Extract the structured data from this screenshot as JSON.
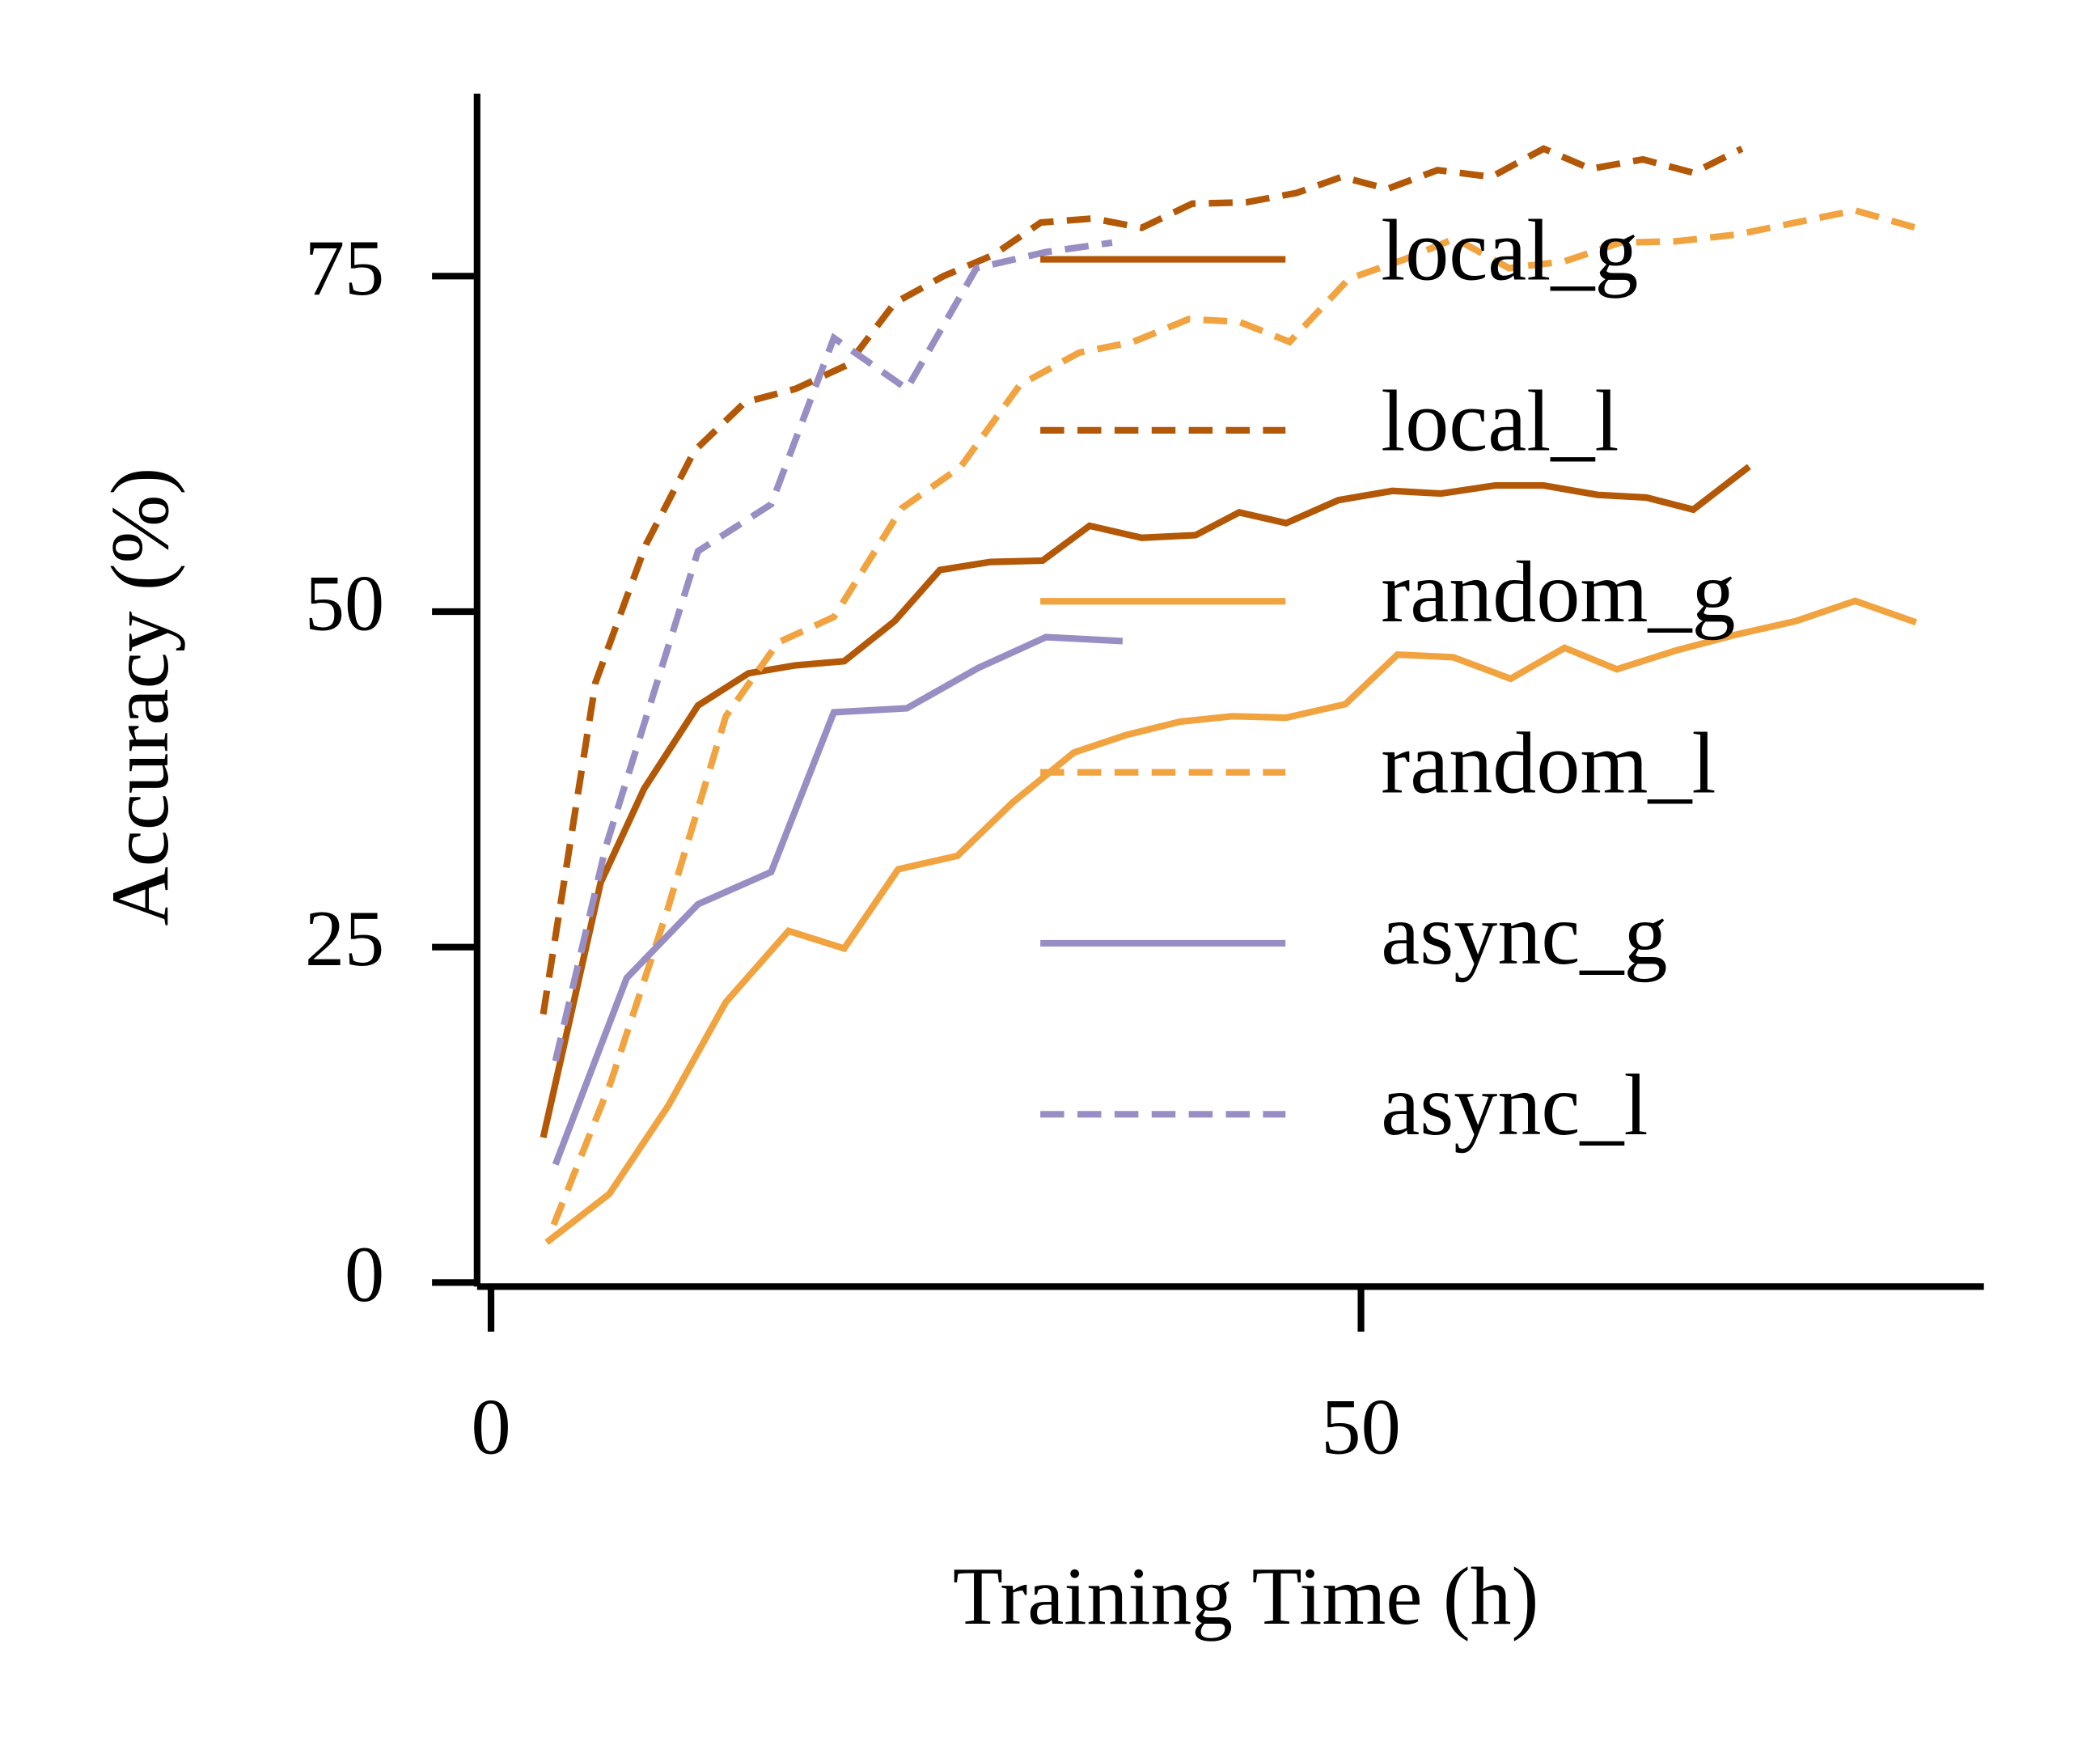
{
  "chart_data": {
    "type": "line",
    "xlabel": "Training Time (h)",
    "ylabel": "Accuracy (%)",
    "xlim": [
      -0.8,
      85.8
    ],
    "ylim": [
      -0.3,
      88.6
    ],
    "xticks": [
      0,
      50
    ],
    "yticks": [
      0,
      25,
      50,
      75
    ],
    "legend": "upper right",
    "series": [
      {
        "name": "local_g",
        "color": "#b35806",
        "line_style": "solid",
        "x": [
          3,
          6.3,
          8.8,
          11.9,
          14.8,
          17.5,
          20.3,
          23.2,
          25.8,
          28.7,
          31.7,
          34.4,
          37.4,
          40.5,
          43,
          45.7,
          48.7,
          51.8,
          54.6,
          57.7,
          60.5,
          63.6,
          66.4,
          69.1,
          72.3
        ],
        "values": [
          10.8,
          29.8,
          36.8,
          43,
          45.4,
          46,
          46.3,
          49.3,
          53.1,
          53.7,
          53.8,
          56.4,
          55.5,
          55.7,
          57.4,
          56.6,
          58.3,
          59,
          58.8,
          59.4,
          59.4,
          58.7,
          58.5,
          57.6,
          60.8
        ]
      },
      {
        "name": "local_l",
        "color": "#b35806",
        "line_style": "dashed",
        "x": [
          3,
          6,
          8.9,
          11.7,
          14.6,
          17.5,
          20.5,
          23.2,
          26,
          28.9,
          31.6,
          34.6,
          37.4,
          40.3,
          43.4,
          46.3,
          48.9,
          51.5,
          54.4,
          57.5,
          60.5,
          63.2,
          66.2,
          69.1,
          71.9
        ],
        "values": [
          20,
          44.7,
          55,
          62,
          65.6,
          66.6,
          68.4,
          73,
          75,
          76.6,
          79,
          79.3,
          78.6,
          80.4,
          80.5,
          81.2,
          82.4,
          81.5,
          82.9,
          82.4,
          84.5,
          83,
          83.7,
          82.7,
          84.5
        ]
      },
      {
        "name": "random_g",
        "color": "#f1a340",
        "line_style": "solid",
        "x": [
          3.2,
          6.8,
          10.2,
          13.5,
          17.1,
          20.3,
          23.4,
          26.8,
          30,
          33.5,
          36.5,
          39.6,
          42.6,
          45.7,
          49.1,
          52.1,
          55.3,
          58.6,
          61.7,
          64.7,
          68.1,
          71.6,
          75,
          78.4,
          81.9
        ],
        "values": [
          3,
          6.6,
          13.2,
          20.9,
          26.2,
          24.9,
          30.8,
          31.8,
          35.8,
          39.5,
          40.8,
          41.8,
          42.2,
          42.1,
          43.1,
          46.8,
          46.6,
          45,
          47.3,
          45.7,
          47.1,
          48.3,
          49.3,
          50.8,
          49.2
        ]
      },
      {
        "name": "random_l",
        "color": "#f1a340",
        "line_style": "dashed",
        "x": [
          3.6,
          6.9,
          10.1,
          13.5,
          16.5,
          19.7,
          23.6,
          27,
          30.4,
          33.8,
          36.9,
          40.1,
          43,
          45.9,
          49.3,
          52.4,
          55.4,
          58.5,
          61.7,
          64.9,
          68.1,
          71.6,
          75,
          78.4,
          81.9
        ],
        "values": [
          4.3,
          15,
          27.6,
          42.2,
          47.7,
          49.6,
          57.7,
          60.8,
          66.9,
          69.3,
          70.1,
          71.8,
          71.6,
          70.1,
          74.8,
          76.2,
          77.8,
          75.6,
          76.1,
          77.5,
          77.6,
          78.1,
          79,
          79.9,
          78.6
        ]
      },
      {
        "name": "async_g",
        "color": "#998ec3",
        "line_style": "solid",
        "x": [
          3.7,
          7.8,
          11.9,
          16.1,
          19.7,
          23.9,
          28,
          31.9,
          36.3
        ],
        "values": [
          8.8,
          22.7,
          28.2,
          30.6,
          42.5,
          42.8,
          45.8,
          48.1,
          47.8
        ]
      },
      {
        "name": "async_l",
        "color": "#998ec3",
        "line_style": "dashed",
        "x": [
          3.7,
          6.6,
          11.9,
          16.1,
          19.7,
          23.9,
          27.9,
          31.9,
          35.7
        ],
        "values": [
          16.5,
          32.5,
          54.5,
          58,
          70.4,
          66.6,
          75.6,
          76.8,
          77.5
        ]
      }
    ]
  }
}
